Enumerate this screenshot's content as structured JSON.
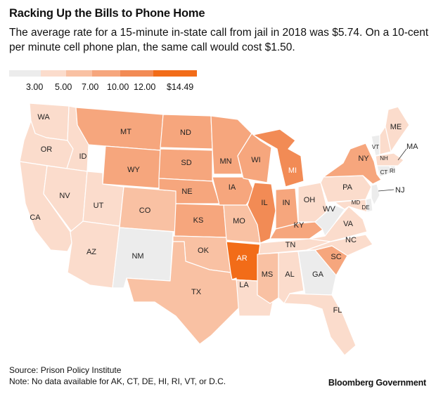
{
  "title": "Racking Up the Bills to Phone Home",
  "subtitle": "The average rate for a 15-minute in-state call from jail in 2018 was $5.74. On a 10-cent per minute cell phone plan, the same call would cost $1.50.",
  "legend": {
    "labels": [
      "3.00",
      "5.00",
      "7.00",
      "10.00",
      "12.00",
      "$14.49"
    ],
    "colors": [
      "#ececec",
      "#fbdccc",
      "#f9c1a3",
      "#f6a67d",
      "#f28b55",
      "#f26c18"
    ]
  },
  "states": {
    "WA": "WA",
    "OR": "OR",
    "CA": "CA",
    "ID": "ID",
    "NV": "NV",
    "MT": "MT",
    "WY": "WY",
    "UT": "UT",
    "AZ": "AZ",
    "CO": "CO",
    "NM": "NM",
    "ND": "ND",
    "SD": "SD",
    "NE": "NE",
    "KS": "KS",
    "OK": "OK",
    "TX": "TX",
    "MN": "MN",
    "IA": "IA",
    "MO": "MO",
    "AR": "AR",
    "LA": "LA",
    "WI": "WI",
    "IL": "IL",
    "MI": "MI",
    "IN": "IN",
    "OH": "OH",
    "KY": "KY",
    "TN": "TN",
    "MS": "MS",
    "AL": "AL",
    "GA": "GA",
    "FL": "FL",
    "SC": "SC",
    "NC": "NC",
    "VA": "VA",
    "WV": "WV",
    "PA": "PA",
    "NY": "NY",
    "MD": "MD",
    "DE": "DE",
    "NJ": "NJ",
    "CT": "CT",
    "RI": "RI",
    "MA": "MA",
    "VT": "VT",
    "NH": "NH",
    "ME": "ME"
  },
  "source": "Source: Prison Policy Institute",
  "note": "Note: No data available for AK, CT, DE, HI, RI, VT, or D.C.",
  "brand": "Bloomberg Government"
}
